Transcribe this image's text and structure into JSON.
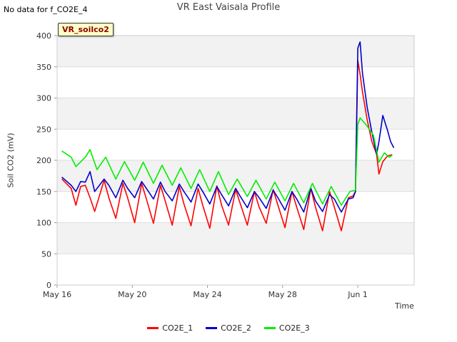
{
  "header": {
    "title": "VR East Vaisala Profile",
    "no_data_note": "No data for f_CO2E_4",
    "badge": "VR_soilco2"
  },
  "chart_data": {
    "type": "line",
    "title": "VR East Vaisala Profile",
    "xlabel": "Time",
    "ylabel": "Soil CO2 (mV)",
    "ylim": [
      0,
      400
    ],
    "yticks": [
      0,
      50,
      100,
      150,
      200,
      250,
      300,
      350,
      400
    ],
    "xlim": [
      "2016-05-16",
      "2016-06-04"
    ],
    "xticks": [
      {
        "date": "2016-05-16",
        "label": "May 16"
      },
      {
        "date": "2016-05-20",
        "label": "May 20"
      },
      {
        "date": "2016-05-24",
        "label": "May 24"
      },
      {
        "date": "2016-05-28",
        "label": "May 28"
      },
      {
        "date": "2016-06-01",
        "label": "Jun 1"
      }
    ],
    "grid": "horizontal bands",
    "legend_position": "bottom",
    "series": [
      {
        "name": "CO2E_1",
        "color": "#ff0000",
        "points": [
          [
            "2016-05-16 06:00",
            170
          ],
          [
            "2016-05-16 18:00",
            155
          ],
          [
            "2016-05-17 00:00",
            128
          ],
          [
            "2016-05-17 06:00",
            158
          ],
          [
            "2016-05-17 12:00",
            160
          ],
          [
            "2016-05-17 18:00",
            140
          ],
          [
            "2016-05-18 00:00",
            118
          ],
          [
            "2016-05-18 12:00",
            168
          ],
          [
            "2016-05-18 18:00",
            140
          ],
          [
            "2016-05-19 03:00",
            107
          ],
          [
            "2016-05-19 12:00",
            163
          ],
          [
            "2016-05-19 18:00",
            140
          ],
          [
            "2016-05-20 03:00",
            100
          ],
          [
            "2016-05-20 12:00",
            163
          ],
          [
            "2016-05-20 18:00",
            138
          ],
          [
            "2016-05-21 03:00",
            99
          ],
          [
            "2016-05-21 12:00",
            160
          ],
          [
            "2016-05-21 18:00",
            135
          ],
          [
            "2016-05-22 03:00",
            96
          ],
          [
            "2016-05-22 12:00",
            158
          ],
          [
            "2016-05-22 18:00",
            130
          ],
          [
            "2016-05-23 03:00",
            95
          ],
          [
            "2016-05-23 12:00",
            155
          ],
          [
            "2016-05-23 18:00",
            128
          ],
          [
            "2016-05-24 03:00",
            91
          ],
          [
            "2016-05-24 12:00",
            159
          ],
          [
            "2016-05-24 18:00",
            128
          ],
          [
            "2016-05-25 03:00",
            96
          ],
          [
            "2016-05-25 12:00",
            153
          ],
          [
            "2016-05-25 18:00",
            130
          ],
          [
            "2016-05-26 03:00",
            96
          ],
          [
            "2016-05-26 12:00",
            150
          ],
          [
            "2016-05-26 18:00",
            125
          ],
          [
            "2016-05-27 03:00",
            99
          ],
          [
            "2016-05-27 12:00",
            153
          ],
          [
            "2016-05-27 18:00",
            128
          ],
          [
            "2016-05-28 03:00",
            92
          ],
          [
            "2016-05-28 12:00",
            150
          ],
          [
            "2016-05-28 18:00",
            125
          ],
          [
            "2016-05-29 03:00",
            89
          ],
          [
            "2016-05-29 12:00",
            155
          ],
          [
            "2016-05-29 18:00",
            125
          ],
          [
            "2016-05-30 03:00",
            87
          ],
          [
            "2016-05-30 12:00",
            150
          ],
          [
            "2016-05-30 18:00",
            125
          ],
          [
            "2016-05-31 03:00",
            87
          ],
          [
            "2016-05-31 12:00",
            140
          ],
          [
            "2016-05-31 18:00",
            143
          ],
          [
            "2016-05-31 21:00",
            150
          ],
          [
            "2016-06-01 00:00",
            360
          ],
          [
            "2016-06-01 03:00",
            338
          ],
          [
            "2016-06-01 06:00",
            310
          ],
          [
            "2016-06-01 12:00",
            265
          ],
          [
            "2016-06-01 18:00",
            230
          ],
          [
            "2016-06-02 00:00",
            210
          ],
          [
            "2016-06-02 03:00",
            178
          ],
          [
            "2016-06-02 08:00",
            198
          ],
          [
            "2016-06-02 14:00",
            207
          ],
          [
            "2016-06-02 20:00",
            209
          ]
        ]
      },
      {
        "name": "CO2E_2",
        "color": "#0000cc",
        "points": [
          [
            "2016-05-16 06:00",
            173
          ],
          [
            "2016-05-16 18:00",
            160
          ],
          [
            "2016-05-17 00:00",
            150
          ],
          [
            "2016-05-17 06:00",
            166
          ],
          [
            "2016-05-17 12:00",
            165
          ],
          [
            "2016-05-17 18:00",
            182
          ],
          [
            "2016-05-18 00:00",
            150
          ],
          [
            "2016-05-18 12:00",
            170
          ],
          [
            "2016-05-18 18:00",
            160
          ],
          [
            "2016-05-19 03:00",
            140
          ],
          [
            "2016-05-19 12:00",
            168
          ],
          [
            "2016-05-19 18:00",
            155
          ],
          [
            "2016-05-20 03:00",
            140
          ],
          [
            "2016-05-20 12:00",
            166
          ],
          [
            "2016-05-20 18:00",
            155
          ],
          [
            "2016-05-21 03:00",
            138
          ],
          [
            "2016-05-21 12:00",
            165
          ],
          [
            "2016-05-21 18:00",
            150
          ],
          [
            "2016-05-22 03:00",
            135
          ],
          [
            "2016-05-22 12:00",
            162
          ],
          [
            "2016-05-22 18:00",
            150
          ],
          [
            "2016-05-23 03:00",
            133
          ],
          [
            "2016-05-23 12:00",
            162
          ],
          [
            "2016-05-23 18:00",
            150
          ],
          [
            "2016-05-24 03:00",
            130
          ],
          [
            "2016-05-24 12:00",
            158
          ],
          [
            "2016-05-24 18:00",
            145
          ],
          [
            "2016-05-25 03:00",
            127
          ],
          [
            "2016-05-25 12:00",
            155
          ],
          [
            "2016-05-25 18:00",
            142
          ],
          [
            "2016-05-26 03:00",
            124
          ],
          [
            "2016-05-26 12:00",
            150
          ],
          [
            "2016-05-26 18:00",
            140
          ],
          [
            "2016-05-27 03:00",
            123
          ],
          [
            "2016-05-27 12:00",
            152
          ],
          [
            "2016-05-27 18:00",
            140
          ],
          [
            "2016-05-28 03:00",
            120
          ],
          [
            "2016-05-28 12:00",
            150
          ],
          [
            "2016-05-28 18:00",
            138
          ],
          [
            "2016-05-29 03:00",
            117
          ],
          [
            "2016-05-29 12:00",
            155
          ],
          [
            "2016-05-29 18:00",
            135
          ],
          [
            "2016-05-30 03:00",
            118
          ],
          [
            "2016-05-30 12:00",
            145
          ],
          [
            "2016-05-30 18:00",
            138
          ],
          [
            "2016-05-31 03:00",
            117
          ],
          [
            "2016-05-31 12:00",
            138
          ],
          [
            "2016-05-31 18:00",
            140
          ],
          [
            "2016-05-31 21:00",
            150
          ],
          [
            "2016-06-01 00:00",
            380
          ],
          [
            "2016-06-01 03:00",
            390
          ],
          [
            "2016-06-01 06:00",
            340
          ],
          [
            "2016-06-01 12:00",
            285
          ],
          [
            "2016-06-01 18:00",
            245
          ],
          [
            "2016-06-02 00:00",
            210
          ],
          [
            "2016-06-02 03:00",
            230
          ],
          [
            "2016-06-02 08:00",
            272
          ],
          [
            "2016-06-02 14:00",
            248
          ],
          [
            "2016-06-02 18:00",
            230
          ],
          [
            "2016-06-02 22:00",
            220
          ]
        ]
      },
      {
        "name": "CO2E_3",
        "color": "#00ee00",
        "points": [
          [
            "2016-05-16 06:00",
            215
          ],
          [
            "2016-05-16 18:00",
            205
          ],
          [
            "2016-05-17 00:00",
            190
          ],
          [
            "2016-05-17 12:00",
            205
          ],
          [
            "2016-05-17 18:00",
            217
          ],
          [
            "2016-05-18 03:00",
            185
          ],
          [
            "2016-05-18 14:00",
            205
          ],
          [
            "2016-05-19 03:00",
            170
          ],
          [
            "2016-05-19 14:00",
            198
          ],
          [
            "2016-05-20 03:00",
            168
          ],
          [
            "2016-05-20 14:00",
            197
          ],
          [
            "2016-05-21 03:00",
            163
          ],
          [
            "2016-05-21 14:00",
            192
          ],
          [
            "2016-05-22 03:00",
            160
          ],
          [
            "2016-05-22 14:00",
            188
          ],
          [
            "2016-05-23 03:00",
            155
          ],
          [
            "2016-05-23 14:00",
            185
          ],
          [
            "2016-05-24 03:00",
            150
          ],
          [
            "2016-05-24 14:00",
            182
          ],
          [
            "2016-05-25 03:00",
            145
          ],
          [
            "2016-05-25 14:00",
            170
          ],
          [
            "2016-05-26 03:00",
            142
          ],
          [
            "2016-05-26 14:00",
            168
          ],
          [
            "2016-05-27 03:00",
            138
          ],
          [
            "2016-05-27 14:00",
            165
          ],
          [
            "2016-05-28 03:00",
            135
          ],
          [
            "2016-05-28 14:00",
            163
          ],
          [
            "2016-05-29 03:00",
            132
          ],
          [
            "2016-05-29 14:00",
            163
          ],
          [
            "2016-05-30 03:00",
            130
          ],
          [
            "2016-05-30 14:00",
            158
          ],
          [
            "2016-05-31 03:00",
            128
          ],
          [
            "2016-05-31 14:00",
            150
          ],
          [
            "2016-05-31 21:00",
            152
          ],
          [
            "2016-06-01 00:00",
            258
          ],
          [
            "2016-06-01 03:00",
            268
          ],
          [
            "2016-06-01 12:00",
            255
          ],
          [
            "2016-06-01 20:00",
            240
          ],
          [
            "2016-06-02 03:00",
            197
          ],
          [
            "2016-06-02 10:00",
            212
          ],
          [
            "2016-06-02 16:00",
            205
          ],
          [
            "2016-06-02 20:00",
            208
          ]
        ]
      }
    ]
  }
}
